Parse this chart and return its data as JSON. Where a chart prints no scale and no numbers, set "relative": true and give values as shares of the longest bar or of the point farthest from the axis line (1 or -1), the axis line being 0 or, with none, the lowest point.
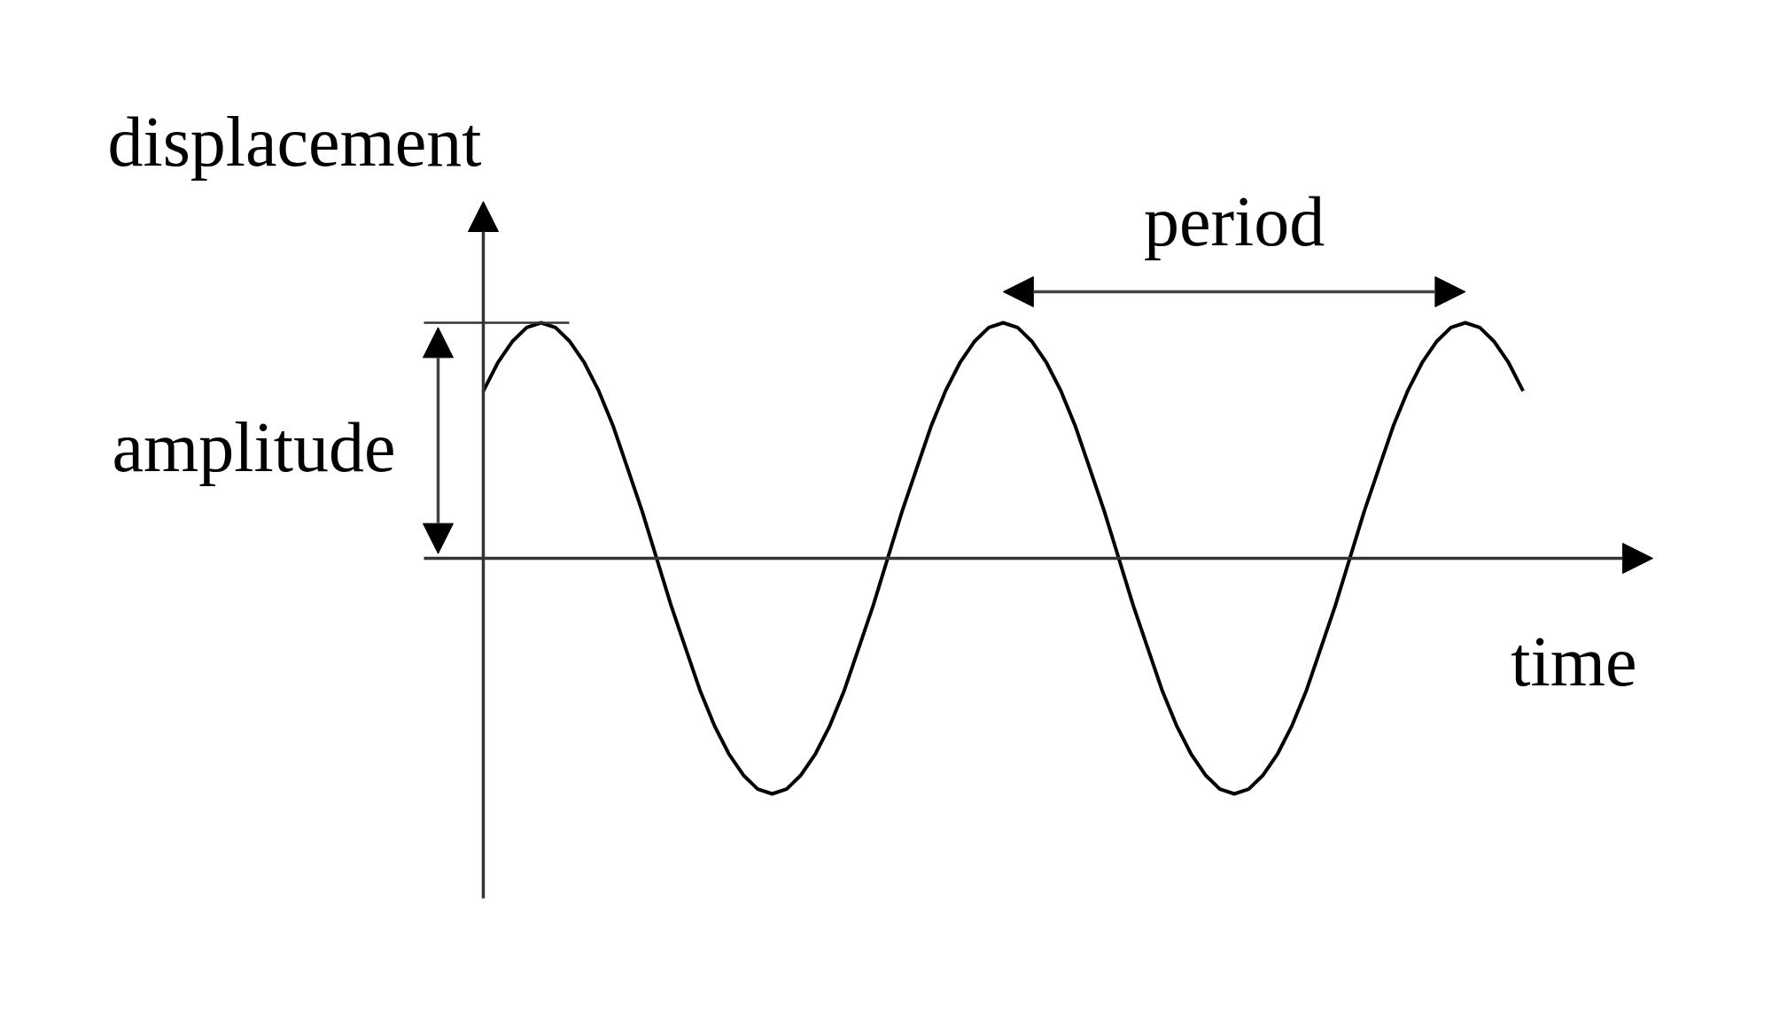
{
  "chart_data": {
    "type": "line",
    "relative": true,
    "xlabel": "time",
    "ylabel": "displacement",
    "annotations": [
      "amplitude",
      "period"
    ],
    "categories": [
      null,
      null,
      null,
      null,
      null,
      null,
      null,
      null,
      null,
      null,
      null,
      null,
      null,
      null,
      null,
      null,
      null,
      null,
      null,
      null,
      null,
      null,
      null,
      null,
      null,
      null,
      null,
      null,
      null,
      null,
      null,
      null,
      null,
      null,
      null,
      null,
      null,
      null,
      null,
      null,
      null,
      null,
      null,
      null,
      null,
      null,
      null,
      null,
      null,
      null,
      null,
      null,
      null,
      null,
      null,
      null,
      null,
      null,
      null,
      null,
      null,
      null,
      null,
      null,
      null,
      null,
      null,
      null,
      null,
      null,
      null,
      null,
      null
    ],
    "series": [
      {
        "color": "#000000",
        "values": [
          0.71,
          0.83,
          0.92,
          0.98,
          1,
          0.98,
          0.92,
          0.83,
          0.71,
          0.56,
          0.38,
          0.2,
          0,
          -0.2,
          -0.38,
          -0.56,
          -0.71,
          -0.83,
          -0.92,
          -0.98,
          -1,
          -0.98,
          -0.92,
          -0.83,
          -0.71,
          -0.56,
          -0.38,
          -0.2,
          0,
          0.2,
          0.38,
          0.56,
          0.71,
          0.83,
          0.92,
          0.98,
          1,
          0.98,
          0.92,
          0.83,
          0.71,
          0.56,
          0.38,
          0.2,
          0,
          -0.2,
          -0.38,
          -0.56,
          -0.71,
          -0.83,
          -0.92,
          -0.98,
          -1,
          -0.98,
          -0.92,
          -0.83,
          -0.71,
          -0.56,
          -0.38,
          -0.2,
          0,
          0.2,
          0.38,
          0.56,
          0.71,
          0.83,
          0.92,
          0.98,
          1,
          0.98,
          0.92,
          0.83,
          0.71
        ]
      }
    ]
  }
}
